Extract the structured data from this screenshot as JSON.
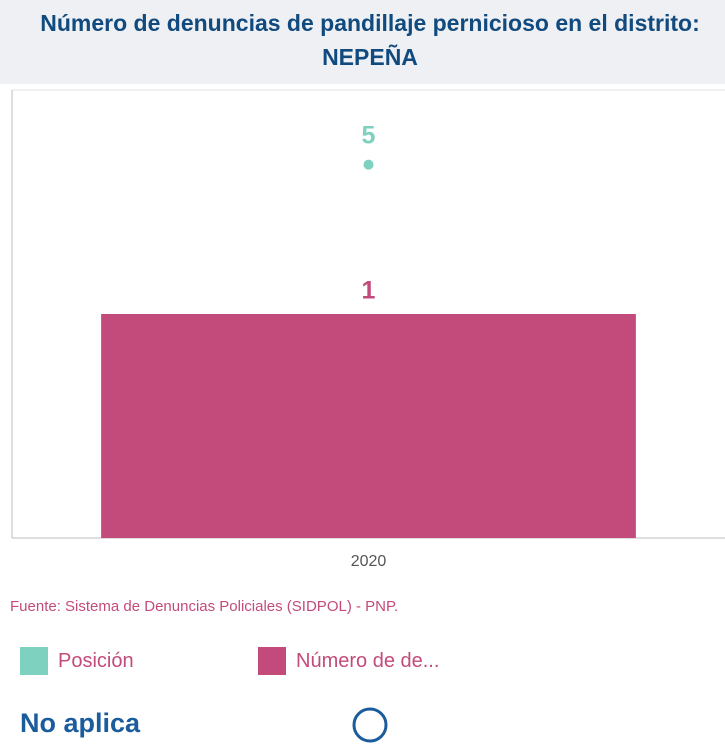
{
  "chart_data": {
    "type": "bar",
    "title": "Número de denuncias de pandillaje pernicioso en el distrito: NEPEÑA",
    "categories": [
      "2020"
    ],
    "series": [
      {
        "name": "Posición",
        "color": "#7fd1bf",
        "values": [
          5
        ],
        "axis": "y2"
      },
      {
        "name": "Número de de...",
        "color": "#c34b7b",
        "values": [
          1
        ]
      }
    ],
    "ylim": [
      0,
      2
    ],
    "y2lim": [
      0,
      6
    ],
    "source": "Fuente: Sistema de Denuncias Policiales (SIDPOL) - PNP.",
    "status": "No aplica"
  }
}
